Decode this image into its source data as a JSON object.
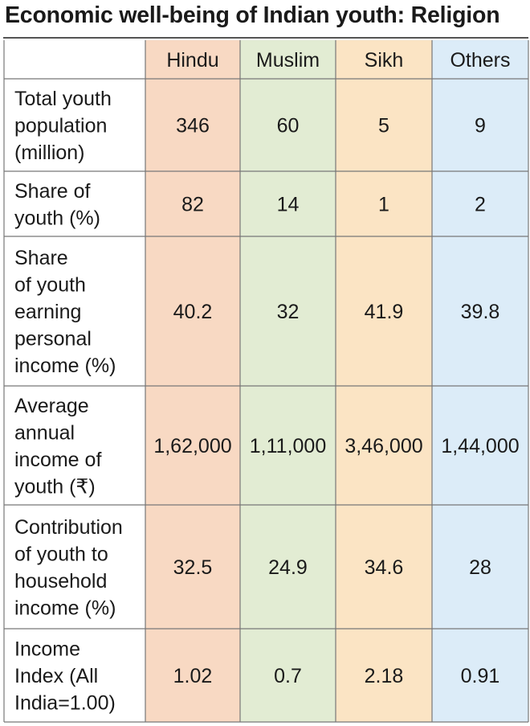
{
  "title": "Economic well-being of Indian youth: Religion",
  "colors": {
    "hindu": "#f8d9c3",
    "muslim": "#e2ecd3",
    "sikh": "#fbe4c4",
    "others": "#dcecf8",
    "grid": "#777777",
    "text": "#1a1a1a"
  },
  "chart_data": {
    "type": "table",
    "title": "Economic well-being of Indian youth: Religion",
    "columns": [
      "Hindu",
      "Muslim",
      "Sikh",
      "Others"
    ],
    "rows": [
      {
        "label_lines": [
          "Total youth",
          "population",
          "(million)"
        ],
        "values": [
          "346",
          "60",
          "5",
          "9"
        ]
      },
      {
        "label_lines": [
          "Share of",
          "youth (%)"
        ],
        "values": [
          "82",
          "14",
          "1",
          "2"
        ]
      },
      {
        "label_lines": [
          "Share",
          "of youth",
          "earning",
          "personal",
          "income (%)"
        ],
        "values": [
          "40.2",
          "32",
          "41.9",
          "39.8"
        ]
      },
      {
        "label_lines": [
          "Average",
          "annual",
          "income of",
          "youth (₹)"
        ],
        "values": [
          "1,62,000",
          "1,11,000",
          "3,46,000",
          "1,44,000"
        ]
      },
      {
        "label_lines": [
          "Contribution",
          "of youth to",
          "household",
          "income (%)"
        ],
        "values": [
          "32.5",
          "24.9",
          "34.6",
          "28"
        ]
      },
      {
        "label_lines": [
          "Income",
          "Index (All",
          "India=1.00)"
        ],
        "values": [
          "1.02",
          "0.7",
          "2.18",
          "0.91"
        ]
      }
    ]
  }
}
